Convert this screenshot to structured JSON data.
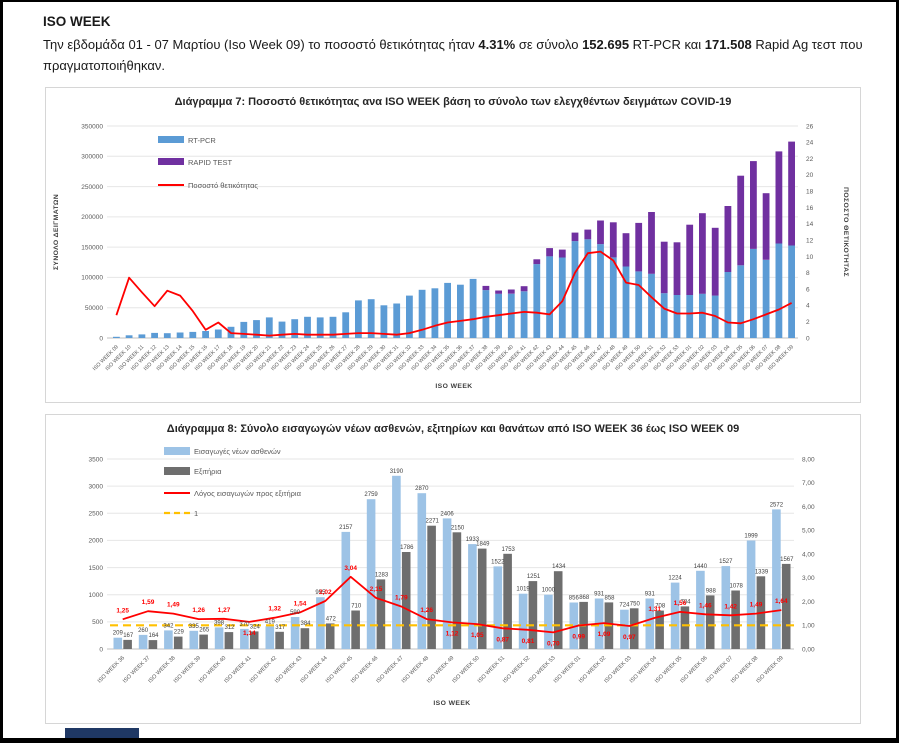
{
  "page": {
    "heading": "ISO WEEK",
    "intro": [
      "Την εβδομάδα 01 - 07 Μαρτίου (Iso Week 09) το ποσοστό θετικότητας ήταν ",
      "4.31%",
      " σε σύνολο ",
      "152.695",
      " RT-PCR και ",
      "171.508",
      " Rapid Ag τεστ που πραγματοποιήθηκαν."
    ]
  },
  "colors": {
    "rtpcr_blue": "#5B9BD5",
    "rapid_purple": "#7030A0",
    "positivity_red": "#FF0000",
    "admissions_blue": "#9DC3E6",
    "discharges_gray": "#6E6E6E",
    "reference_yellow": "#FFC000",
    "footer_navy": "#1F3864"
  },
  "chart_data": [
    {
      "type": "bar",
      "subtype": "stacked-with-line",
      "title": "Διάγραμμα 7: Ποσοστό θετικότητας ανα ISO WEEK  βάση το σύνολο των ελεγχθέντων δειγμάτων COVID-19",
      "xlabel": "ISO WEEK",
      "ylabel_left": "ΣΥΝΟΛΟ ΔΕΙΓΜΑΤΩΝ",
      "ylabel_right": "ΠΟΣΟΣΤΟ ΘΕΤΙΚΟΤΗΤΑΣ",
      "ylim_left": [
        0,
        350000
      ],
      "ytick_step_left": 50000,
      "ylim_right": [
        0,
        26
      ],
      "ytick_step_right": 2,
      "grid": true,
      "legend_position": "top-left",
      "legend": [
        "RT-PCR",
        "RAPID TEST",
        "Ποσοστό θετικότητας"
      ],
      "categories": [
        "ISO WEEK 09",
        "ISO WEEK 10",
        "ISO WEEK 11",
        "ISO WEEK 12",
        "ISO WEEK 13",
        "ISO WEEK 14",
        "ISO WEEK 15",
        "ISO WEEK 16",
        "ISO WEEK 17",
        "ISO WEEK 18",
        "ISO WEEK 19",
        "ISO WEEK 20",
        "ISO WEEK 21",
        "ISO WEEK 22",
        "ISO WEEK 23",
        "ISO WEEK 24",
        "ISO WEEK 25",
        "ISO WEEK 26",
        "ISO WEEK 27",
        "ISO WEEK 28",
        "ISO WEEK 29",
        "ISO WEEK 30",
        "ISO WEEK 31",
        "ISO WEEK 32",
        "ISO WEEK 33",
        "ISO WEEK 34",
        "ISO WEEK 35",
        "ISO WEEK 36",
        "ISO WEEK 37",
        "ISO WEEK 38",
        "ISO WEEK 39",
        "ISO WEEK 40",
        "ISO WEEK 41",
        "ISO WEEK 42",
        "ISO WEEK 43",
        "ISO WEEK 44",
        "ISO WEEK 45",
        "ISO WEEK 46",
        "ISO WEEK 47",
        "ISO WEEK 48",
        "ISO WEEK 49",
        "ISO WEEK 50",
        "ISO WEEK 51",
        "ISO WEEK 52",
        "ISO WEEK 53",
        "ISO WEEK 01",
        "ISO WEEK 02",
        "ISO WEEK 03",
        "ISO WEEK 04",
        "ISO WEEK 05",
        "ISO WEEK 06",
        "ISO WEEK 07",
        "ISO WEEK 08",
        "ISO WEEK 09"
      ],
      "series": [
        {
          "name": "RT-PCR",
          "type": "bar",
          "axis": "left",
          "color": "#5B9BD5",
          "values": [
            2000,
            4500,
            6000,
            8500,
            8000,
            9000,
            10000,
            11500,
            14000,
            18500,
            26500,
            29500,
            34000,
            27000,
            31000,
            35000,
            34000,
            35000,
            42500,
            62000,
            64000,
            54000,
            57000,
            70000,
            79500,
            82000,
            91000,
            88000,
            97500,
            79000,
            73000,
            73000,
            77000,
            122000,
            135000,
            133000,
            160000,
            163000,
            155000,
            133000,
            118000,
            110000,
            106000,
            74000,
            71000,
            71000,
            73000,
            70000,
            109000,
            120000,
            147000,
            129000,
            156000,
            152695
          ]
        },
        {
          "name": "RAPID TEST",
          "type": "bar",
          "axis": "left",
          "color": "#7030A0",
          "values": [
            0,
            0,
            0,
            0,
            0,
            0,
            0,
            0,
            0,
            0,
            0,
            0,
            0,
            0,
            0,
            0,
            0,
            0,
            0,
            0,
            0,
            0,
            0,
            0,
            0,
            0,
            0,
            0,
            0,
            7000,
            5500,
            7000,
            8500,
            8000,
            13500,
            13000,
            14000,
            16000,
            39000,
            58000,
            55000,
            80000,
            102000,
            85000,
            87000,
            116000,
            133000,
            112000,
            109000,
            148000,
            145000,
            110000,
            152000,
            171508
          ]
        },
        {
          "name": "Ποσοστό θετικότητας",
          "type": "line",
          "axis": "right",
          "color": "#FF0000",
          "values": [
            2.8,
            7.4,
            5.6,
            3.9,
            5.8,
            5.2,
            3.3,
            1.0,
            1.9,
            0.6,
            0.5,
            0.4,
            0.3,
            0.4,
            0.5,
            0.4,
            0.4,
            0.4,
            0.5,
            0.6,
            0.6,
            0.5,
            0.4,
            0.6,
            1.0,
            1.5,
            1.9,
            2.1,
            2.3,
            2.6,
            2.8,
            3.0,
            3.2,
            3.1,
            2.9,
            4.5,
            8.0,
            10.4,
            10.6,
            9.5,
            6.8,
            6.5,
            5.0,
            3.6,
            3.0,
            3.0,
            3.1,
            2.7,
            1.9,
            1.8,
            2.3,
            2.9,
            3.5,
            4.31
          ]
        }
      ]
    },
    {
      "type": "bar",
      "subtype": "grouped-with-line",
      "title": "Διάγραμμα 8: Σύνολο εισαγωγών νέων ασθενών, εξιτηρίων και θανάτων από ISO WEEK 36 έως ISO WEEK 09",
      "xlabel": "ISO WEEK",
      "ylabel_left": "",
      "ylabel_right": "",
      "ylim_left": [
        0,
        3500
      ],
      "ytick_step_left": 500,
      "ylim_right": [
        0,
        8
      ],
      "ytick_step_right": 1,
      "right_tick_labels": [
        "0,00",
        "1,00",
        "2,00",
        "3,00",
        "4,00",
        "5,00",
        "6,00",
        "7,00",
        "8,00"
      ],
      "grid": true,
      "legend_position": "top-left",
      "legend": [
        "Εισαγωγές νέων ασθενών",
        "Εξιτήρια",
        "Λόγος εισαγωγών προς εξιτήρια",
        "1"
      ],
      "categories": [
        "ISO WEEK 36",
        "ISO WEEK 37",
        "ISO WEEK 38",
        "ISO WEEK 39",
        "ISO WEEK 40",
        "ISO WEEK 41",
        "ISO WEEK 42",
        "ISO WEEK 43",
        "ISO WEEK 44",
        "ISO WEEK 45",
        "ISO WEEK 46",
        "ISO WEEK 47",
        "ISO WEEK 48",
        "ISO WEEK 49",
        "ISO WEEK 50",
        "ISO WEEK 51",
        "ISO WEEK 52",
        "ISO WEEK 53",
        "ISO WEEK 01",
        "ISO WEEK 02",
        "ISO WEEK 03",
        "ISO WEEK 04",
        "ISO WEEK 05",
        "ISO WEEK 06",
        "ISO WEEK 07",
        "ISO WEEK 08",
        "ISO WEEK 09"
      ],
      "series": [
        {
          "name": "Εισαγωγές νέων ασθενών",
          "type": "bar",
          "axis": "left",
          "color": "#9DC3E6",
          "data_labels": true,
          "values": [
            209,
            260,
            342,
            335,
            398,
            370,
            419,
            590,
            955,
            2157,
            2759,
            3190,
            2870,
            2406,
            1933,
            1522,
            1019,
            1000,
            856,
            931,
            724,
            931,
            1224,
            1440,
            1527,
            1999,
            2572
          ]
        },
        {
          "name": "Εξιτήρια",
          "type": "bar",
          "axis": "left",
          "color": "#6E6E6E",
          "data_labels": true,
          "values": [
            167,
            164,
            229,
            265,
            312,
            324,
            317,
            384,
            472,
            710,
            1283,
            1786,
            2271,
            2150,
            1849,
            1753,
            1251,
            1434,
            868,
            858,
            750,
            708,
            784,
            988,
            1078,
            1339,
            1567
          ]
        },
        {
          "name": "Λόγος εισαγωγών προς εξιτήρια",
          "type": "line",
          "axis": "right",
          "color": "#FF0000",
          "values": [
            1.25,
            1.59,
            1.49,
            1.26,
            1.27,
            1.14,
            1.32,
            1.54,
            2.02,
            3.04,
            2.15,
            1.79,
            1.26,
            1.12,
            1.05,
            0.87,
            0.81,
            0.7,
            0.99,
            1.09,
            0.97,
            1.31,
            1.56,
            1.46,
            1.42,
            1.49,
            1.64
          ],
          "value_labels": [
            "1,25",
            "1,59",
            "1,49",
            "1,26",
            "1,27",
            "1,14",
            "1,32",
            "1,54",
            "2,02",
            "3,04",
            "2,15",
            "1,79",
            "1,26",
            "1,12",
            "1,05",
            "0,87",
            "0,81",
            "0,70",
            "0,99",
            "1,09",
            "0,97",
            "1,31",
            "1,56",
            "1,46",
            "1,42",
            "1,49",
            "1,64"
          ]
        },
        {
          "name": "1",
          "type": "hline",
          "axis": "right",
          "color": "#FFC000",
          "value": 1
        }
      ]
    }
  ]
}
